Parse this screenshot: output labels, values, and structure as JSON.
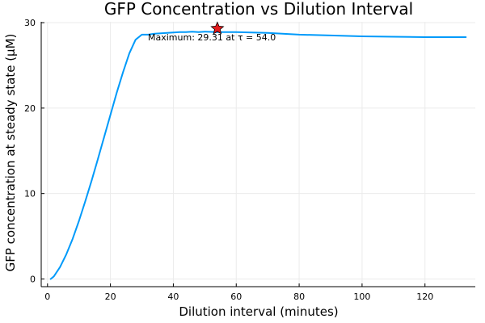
{
  "chart_data": {
    "type": "line",
    "title": "GFP Concentration vs Dilution Interval",
    "xlabel": "Dilution interval (minutes)",
    "ylabel": "GFP concentration at steady state (μM)",
    "xlim": [
      -2,
      136
    ],
    "ylim": [
      -0.9,
      30.1
    ],
    "xticks": [
      0,
      20,
      40,
      60,
      80,
      100,
      120
    ],
    "yticks": [
      0,
      10,
      20,
      30
    ],
    "grid": true,
    "legend": "none",
    "colors": {
      "series": "#009AFA",
      "marker": "#E41A1C",
      "axis": "#000000",
      "grid": "#EBEBEB"
    },
    "series": [
      {
        "x": [
          1,
          2,
          4,
          6,
          8,
          10,
          12,
          14,
          16,
          18,
          20,
          22,
          24,
          26,
          28,
          30,
          32,
          34,
          36,
          38,
          40,
          42,
          44,
          46,
          48,
          50,
          54,
          60,
          70,
          80,
          90,
          100,
          110,
          120,
          133
        ],
        "y": [
          0.0,
          0.3,
          1.4,
          2.9,
          4.7,
          6.8,
          9.1,
          11.5,
          14.0,
          16.6,
          19.2,
          21.8,
          24.2,
          26.4,
          28.0,
          28.6,
          28.6,
          28.7,
          28.75,
          28.8,
          28.85,
          28.9,
          28.9,
          28.95,
          28.9,
          28.95,
          28.9,
          28.9,
          28.8,
          28.6,
          28.5,
          28.4,
          28.35,
          28.3,
          28.3
        ]
      }
    ],
    "max_point": {
      "x": 54.0,
      "y": 29.31
    },
    "annotation": "Maximum: 29.31 at τ = 54.0"
  }
}
